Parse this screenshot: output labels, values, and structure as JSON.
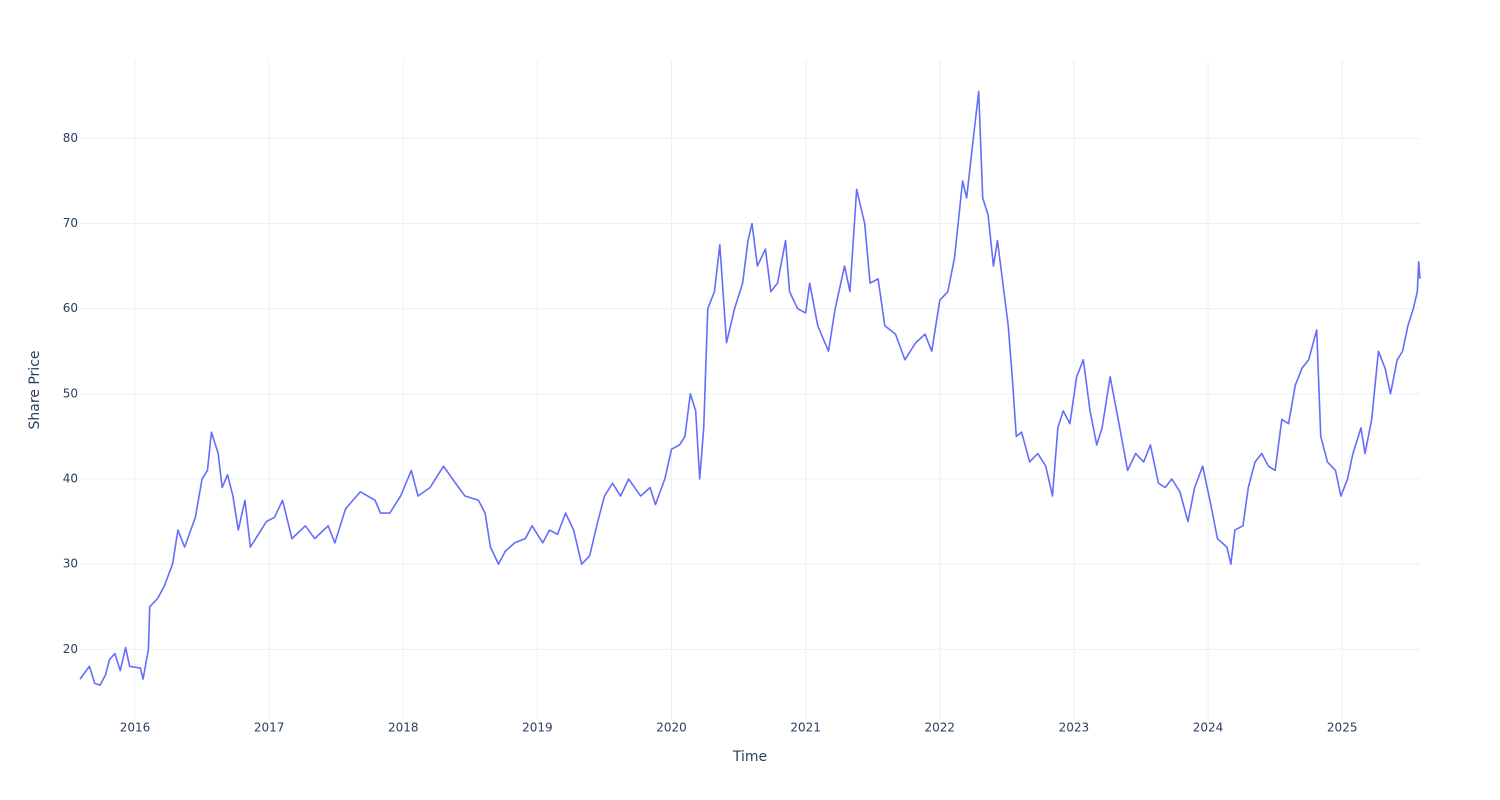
{
  "chart_data": {
    "type": "line",
    "x_label": "Time",
    "y_label": "Share Price",
    "x": [
      2015.59,
      2015.66,
      2015.7,
      2015.74,
      2015.78,
      2015.81,
      2015.85,
      2015.89,
      2015.93,
      2015.96,
      2016.04,
      2016.06,
      2016.1,
      2016.11,
      2016.17,
      2016.22,
      2016.28,
      2016.32,
      2016.37,
      2016.45,
      2016.5,
      2016.54,
      2016.57,
      2016.62,
      2016.65,
      2016.69,
      2016.73,
      2016.77,
      2016.82,
      2016.86,
      2016.92,
      2016.98,
      2017.04,
      2017.1,
      2017.17,
      2017.27,
      2017.34,
      2017.44,
      2017.49,
      2017.57,
      2017.68,
      2017.79,
      2017.83,
      2017.9,
      2017.98,
      2018.06,
      2018.11,
      2018.2,
      2018.3,
      2018.39,
      2018.46,
      2018.56,
      2018.61,
      2018.65,
      2018.71,
      2018.76,
      2018.83,
      2018.91,
      2018.96,
      2019.04,
      2019.09,
      2019.15,
      2019.21,
      2019.27,
      2019.33,
      2019.39,
      2019.45,
      2019.5,
      2019.56,
      2019.62,
      2019.68,
      2019.77,
      2019.84,
      2019.88,
      2019.95,
      2020.0,
      2020.06,
      2020.1,
      2020.14,
      2020.18,
      2020.21,
      2020.24,
      2020.27,
      2020.32,
      2020.36,
      2020.41,
      2020.47,
      2020.53,
      2020.57,
      2020.6,
      2020.64,
      2020.7,
      2020.74,
      2020.79,
      2020.85,
      2020.88,
      2020.94,
      2021.0,
      2021.03,
      2021.09,
      2021.17,
      2021.22,
      2021.29,
      2021.33,
      2021.38,
      2021.44,
      2021.48,
      2021.54,
      2021.59,
      2021.67,
      2021.74,
      2021.82,
      2021.89,
      2021.94,
      2022.0,
      2022.06,
      2022.11,
      2022.17,
      2022.2,
      2022.25,
      2022.29,
      2022.32,
      2022.36,
      2022.4,
      2022.43,
      2022.47,
      2022.51,
      2022.54,
      2022.57,
      2022.61,
      2022.67,
      2022.73,
      2022.79,
      2022.84,
      2022.88,
      2022.92,
      2022.97,
      2023.02,
      2023.07,
      2023.12,
      2023.17,
      2023.21,
      2023.27,
      2023.33,
      2023.4,
      2023.46,
      2023.52,
      2023.57,
      2023.63,
      2023.68,
      2023.73,
      2023.79,
      2023.85,
      2023.9,
      2023.96,
      2024.02,
      2024.07,
      2024.14,
      2024.17,
      2024.2,
      2024.26,
      2024.3,
      2024.35,
      2024.4,
      2024.45,
      2024.5,
      2024.55,
      2024.6,
      2024.65,
      2024.7,
      2024.75,
      2024.81,
      2024.84,
      2024.89,
      2024.95,
      2024.99,
      2025.04,
      2025.08,
      2025.14,
      2025.17,
      2025.22,
      2025.27,
      2025.32,
      2025.36,
      2025.41,
      2025.45,
      2025.49,
      2025.53,
      2025.56,
      2025.57,
      2025.58
    ],
    "series": [
      {
        "color": "#636efa",
        "values": [
          16.5,
          18,
          16,
          15.8,
          17,
          18.8,
          19.5,
          17.5,
          20.2,
          18,
          17.8,
          16.5,
          20,
          25,
          26,
          27.5,
          30,
          34,
          32,
          35.5,
          40,
          41,
          45.5,
          43,
          39,
          40.5,
          38,
          34,
          37.5,
          32,
          33.5,
          35,
          35.5,
          37.5,
          33,
          34.5,
          33,
          34.5,
          32.5,
          36.5,
          38.5,
          37.5,
          36,
          36,
          38,
          41,
          38,
          39,
          41.5,
          39.5,
          38,
          37.5,
          36,
          32,
          30,
          31.5,
          32.5,
          33,
          34.5,
          32.5,
          34,
          33.5,
          36,
          34,
          30,
          31,
          35,
          38,
          39.5,
          38,
          40,
          38,
          39,
          37,
          40,
          43.5,
          44,
          45,
          50,
          48,
          40,
          46,
          60,
          62,
          67.5,
          56,
          60,
          63,
          68,
          70,
          65,
          67,
          62,
          63,
          68,
          62,
          60,
          59.5,
          63,
          58,
          55,
          60,
          65,
          62,
          74,
          70,
          63,
          63.5,
          58,
          57,
          54,
          56,
          57,
          55,
          61,
          62,
          66,
          75,
          73,
          80,
          85.5,
          73,
          71,
          65,
          68,
          63,
          58,
          52,
          45,
          45.5,
          42,
          43,
          41.5,
          38,
          46,
          48,
          46.5,
          52,
          54,
          48,
          44,
          46,
          52,
          47,
          41,
          43,
          42,
          44,
          39.5,
          39,
          40,
          38.5,
          35,
          39,
          41.5,
          37,
          33,
          32,
          30,
          34,
          34.5,
          39,
          42,
          43,
          41.5,
          41,
          47,
          46.5,
          51,
          53,
          54,
          57.5,
          45,
          42,
          41,
          38,
          40,
          43,
          46,
          43,
          47,
          55,
          53,
          50,
          54,
          55,
          58,
          60,
          62,
          65.5,
          63.5
        ]
      }
    ],
    "xlim": [
      2015.59,
      2025.58
    ],
    "xticks": [
      2016,
      2017,
      2018,
      2019,
      2020,
      2021,
      2022,
      2023,
      2024,
      2025
    ],
    "ylim": [
      11.7,
      89.2
    ],
    "yticks": [
      20,
      30,
      40,
      50,
      60,
      70,
      80
    ],
    "grid": true
  }
}
